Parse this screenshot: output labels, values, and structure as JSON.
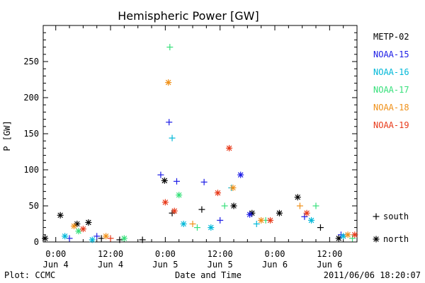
{
  "chart_data": {
    "type": "scatter",
    "title": "Hemispheric Power [GW]",
    "xlabel": "Date and Time",
    "ylabel": "P [GW]",
    "xlim": [
      "2011-06-03 21:15",
      "2011-06-06 18:00"
    ],
    "ylim": [
      0,
      300
    ],
    "y_ticks": [
      0,
      50,
      100,
      150,
      200,
      250
    ],
    "x_ticks": [
      {
        "t": "2011-06-04 00:00",
        "time": "0:00",
        "date": "Jun 4"
      },
      {
        "t": "2011-06-04 12:00",
        "time": "12:00",
        "date": "Jun 4"
      },
      {
        "t": "2011-06-05 00:00",
        "time": "0:00",
        "date": "Jun 5"
      },
      {
        "t": "2011-06-05 12:00",
        "time": "12:00",
        "date": "Jun 5"
      },
      {
        "t": "2011-06-06 00:00",
        "time": "0:00",
        "date": "Jun 6"
      },
      {
        "t": "2011-06-06 12:00",
        "time": "12:00",
        "date": "Jun 6"
      }
    ],
    "marker_legend": [
      {
        "symbol": "+",
        "label": "south"
      },
      {
        "symbol": "*",
        "label": "north"
      }
    ],
    "series": [
      {
        "name": "METP-02",
        "color": "#000000",
        "points": [
          {
            "t": "2011-06-03 21:40",
            "y": 5,
            "m": "*"
          },
          {
            "t": "2011-06-04 01:00",
            "y": 37,
            "m": "*"
          },
          {
            "t": "2011-06-04 04:40",
            "y": 25,
            "m": "*"
          },
          {
            "t": "2011-06-04 07:10",
            "y": 27,
            "m": "*"
          },
          {
            "t": "2011-06-04 10:00",
            "y": 5,
            "m": "+"
          },
          {
            "t": "2011-06-04 14:00",
            "y": 3,
            "m": "+"
          },
          {
            "t": "2011-06-04 19:00",
            "y": 3,
            "m": "+"
          },
          {
            "t": "2011-06-04 23:50",
            "y": 85,
            "m": "*"
          },
          {
            "t": "2011-06-05 01:30",
            "y": 40,
            "m": "+"
          },
          {
            "t": "2011-06-05 08:00",
            "y": 45,
            "m": "+"
          },
          {
            "t": "2011-06-05 15:00",
            "y": 50,
            "m": "*"
          },
          {
            "t": "2011-06-05 19:00",
            "y": 40,
            "m": "*"
          },
          {
            "t": "2011-06-06 01:00",
            "y": 40,
            "m": "*"
          },
          {
            "t": "2011-06-06 05:00",
            "y": 62,
            "m": "*"
          },
          {
            "t": "2011-06-06 10:00",
            "y": 20,
            "m": "+"
          },
          {
            "t": "2011-06-06 14:00",
            "y": 5,
            "m": "*"
          }
        ]
      },
      {
        "name": "NOAA-15",
        "color": "#1c1ce6",
        "points": [
          {
            "t": "2011-06-04 03:00",
            "y": 5,
            "m": "+"
          },
          {
            "t": "2011-06-04 09:00",
            "y": 8,
            "m": "+"
          },
          {
            "t": "2011-06-04 23:00",
            "y": 93,
            "m": "+"
          },
          {
            "t": "2011-06-05 00:50",
            "y": 166,
            "m": "+"
          },
          {
            "t": "2011-06-05 02:30",
            "y": 84,
            "m": "+"
          },
          {
            "t": "2011-06-05 08:30",
            "y": 83,
            "m": "+"
          },
          {
            "t": "2011-06-05 12:00",
            "y": 30,
            "m": "+"
          },
          {
            "t": "2011-06-05 16:30",
            "y": 93,
            "m": "*"
          },
          {
            "t": "2011-06-05 18:30",
            "y": 38,
            "m": "*"
          },
          {
            "t": "2011-06-06 06:30",
            "y": 35,
            "m": "+"
          },
          {
            "t": "2011-06-06 14:30",
            "y": 10,
            "m": "+"
          }
        ]
      },
      {
        "name": "NOAA-16",
        "color": "#00b8d8",
        "points": [
          {
            "t": "2011-06-04 02:00",
            "y": 8,
            "m": "*"
          },
          {
            "t": "2011-06-04 08:00",
            "y": 3,
            "m": "*"
          },
          {
            "t": "2011-06-05 01:30",
            "y": 144,
            "m": "+"
          },
          {
            "t": "2011-06-05 04:00",
            "y": 25,
            "m": "*"
          },
          {
            "t": "2011-06-05 10:00",
            "y": 20,
            "m": "*"
          },
          {
            "t": "2011-06-05 14:30",
            "y": 75,
            "m": "+"
          },
          {
            "t": "2011-06-05 20:00",
            "y": 25,
            "m": "+"
          },
          {
            "t": "2011-06-06 08:00",
            "y": 30,
            "m": "*"
          },
          {
            "t": "2011-06-06 15:00",
            "y": 8,
            "m": "*"
          }
        ]
      },
      {
        "name": "NOAA-17",
        "color": "#36e07a",
        "points": [
          {
            "t": "2011-06-04 05:00",
            "y": 15,
            "m": "*"
          },
          {
            "t": "2011-06-04 15:00",
            "y": 5,
            "m": "*"
          },
          {
            "t": "2011-06-05 01:00",
            "y": 270,
            "m": "+"
          },
          {
            "t": "2011-06-05 03:00",
            "y": 65,
            "m": "*"
          },
          {
            "t": "2011-06-05 07:00",
            "y": 20,
            "m": "+"
          },
          {
            "t": "2011-06-05 13:00",
            "y": 50,
            "m": "+"
          },
          {
            "t": "2011-06-05 22:00",
            "y": 30,
            "m": "+"
          },
          {
            "t": "2011-06-06 09:00",
            "y": 50,
            "m": "+"
          },
          {
            "t": "2011-06-06 17:00",
            "y": 5,
            "m": "+"
          }
        ]
      },
      {
        "name": "NOAA-18",
        "color": "#f09018",
        "points": [
          {
            "t": "2011-06-04 04:00",
            "y": 22,
            "m": "*"
          },
          {
            "t": "2011-06-04 11:00",
            "y": 8,
            "m": "*"
          },
          {
            "t": "2011-06-05 00:40",
            "y": 221,
            "m": "*"
          },
          {
            "t": "2011-06-05 06:00",
            "y": 25,
            "m": "+"
          },
          {
            "t": "2011-06-05 14:50",
            "y": 75,
            "m": "*"
          },
          {
            "t": "2011-06-05 21:00",
            "y": 30,
            "m": "*"
          },
          {
            "t": "2011-06-06 05:30",
            "y": 50,
            "m": "+"
          },
          {
            "t": "2011-06-06 16:00",
            "y": 10,
            "m": "*"
          }
        ]
      },
      {
        "name": "NOAA-19",
        "color": "#e83a1a",
        "points": [
          {
            "t": "2011-06-04 06:00",
            "y": 18,
            "m": "*"
          },
          {
            "t": "2011-06-04 12:00",
            "y": 5,
            "m": "+"
          },
          {
            "t": "2011-06-05 00:00",
            "y": 55,
            "m": "*"
          },
          {
            "t": "2011-06-05 02:00",
            "y": 43,
            "m": "*"
          },
          {
            "t": "2011-06-05 11:30",
            "y": 68,
            "m": "*"
          },
          {
            "t": "2011-06-05 14:00",
            "y": 130,
            "m": "*"
          },
          {
            "t": "2011-06-05 23:00",
            "y": 30,
            "m": "*"
          },
          {
            "t": "2011-06-06 07:00",
            "y": 40,
            "m": "*"
          },
          {
            "t": "2011-06-06 17:30",
            "y": 10,
            "m": "*"
          }
        ]
      }
    ]
  },
  "footer": {
    "left": "Plot: CCMC",
    "right": "2011/06/06 18:20:07"
  }
}
